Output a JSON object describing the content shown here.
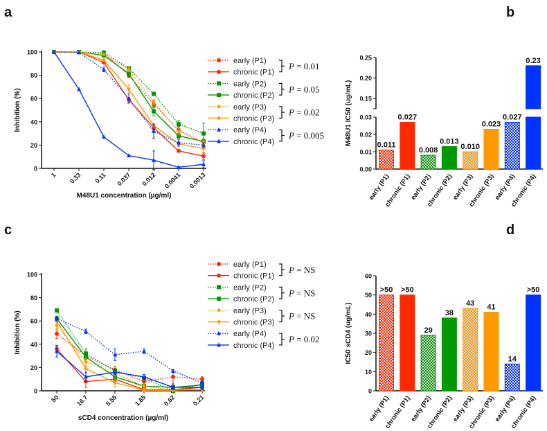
{
  "colors": {
    "P1": "#ff2a00",
    "P2": "#009900",
    "P3": "#ff9900",
    "P4": "#0033ff"
  },
  "chart_data": [
    {
      "panel": "a",
      "type": "line",
      "xlabel": "M48U1 concentration (µg/ml)",
      "ylabel": "Inhibition (%)",
      "ylim": [
        0,
        100
      ],
      "yticks": [
        "0",
        "20",
        "40",
        "60",
        "80",
        "100"
      ],
      "categories": [
        "1",
        "0.33",
        "0.11",
        "0.037",
        "0.012",
        "0.0041",
        "0.0013"
      ],
      "series": [
        {
          "name": "early (P1)",
          "group": "P1",
          "style": "dotted",
          "marker": "circle",
          "values": [
            100,
            100,
            99,
            80,
            55,
            33,
            22
          ],
          "err": [
            0,
            0,
            1,
            2,
            3,
            3,
            2
          ]
        },
        {
          "name": "chronic (P1)",
          "group": "P1",
          "style": "solid",
          "marker": "circle",
          "values": [
            100,
            100,
            91,
            59,
            35,
            15,
            10.5
          ],
          "err": [
            0,
            0,
            1,
            2,
            2,
            1,
            3
          ]
        },
        {
          "name": "early (P2)",
          "group": "P2",
          "style": "dotted",
          "marker": "square",
          "values": [
            100,
            100,
            99.5,
            86,
            64,
            38,
            30
          ],
          "err": [
            0,
            0,
            1,
            1,
            1,
            3,
            9
          ]
        },
        {
          "name": "chronic (P2)",
          "group": "P2",
          "style": "solid",
          "marker": "square",
          "values": [
            100,
            100,
            97,
            81.5,
            49,
            28,
            23
          ],
          "err": [
            0,
            0,
            1,
            2,
            4,
            2,
            2
          ]
        },
        {
          "name": "early (P3)",
          "group": "P3",
          "style": "dotted",
          "marker": "diamond",
          "values": [
            100,
            100,
            98,
            85,
            57,
            32,
            22
          ],
          "err": [
            0,
            0,
            1,
            2,
            2,
            3,
            2
          ]
        },
        {
          "name": "chronic (P3)",
          "group": "P3",
          "style": "solid",
          "marker": "diamond",
          "values": [
            100,
            100,
            93,
            68,
            37,
            21,
            17
          ],
          "err": [
            0,
            0,
            1,
            4,
            2,
            2,
            4
          ]
        },
        {
          "name": "early (P4)",
          "group": "P4",
          "style": "dotted",
          "marker": "triangle",
          "values": [
            100,
            99.5,
            85,
            60,
            32,
            22,
            20
          ],
          "err": [
            0,
            0,
            2,
            4,
            6,
            3,
            2
          ]
        },
        {
          "name": "chronic (P4)",
          "group": "P4",
          "style": "solid",
          "marker": "triangle",
          "values": [
            100,
            68,
            27,
            11,
            7,
            1,
            3.5
          ],
          "err": [
            0,
            0,
            0,
            0,
            8,
            0,
            3
          ]
        }
      ],
      "p_values": [
        "P = 0.01",
        "P = 0.05",
        "P = 0.02",
        "P = 0.005"
      ]
    },
    {
      "panel": "b",
      "type": "bar",
      "ylabel": "M48U1 IC50 (ug/mL)",
      "axis_break": [
        0.03,
        0.125
      ],
      "ylim": [
        0,
        0.25
      ],
      "yticks_lower": [
        "0.00",
        "0.01",
        "0.02",
        "0.03"
      ],
      "yticks_upper": [
        "0.15",
        "0.20",
        "0.25"
      ],
      "categories": [
        "early (P1)",
        "chronic (P1)",
        "early (P2)",
        "chronic (P2)",
        "early (P3)",
        "chronic (P3)",
        "early (P4)",
        "chronic (P4)"
      ],
      "values": [
        0.011,
        0.027,
        0.008,
        0.013,
        0.01,
        0.023,
        0.027,
        0.23
      ],
      "labels": [
        "0.011",
        "0.027",
        "0.008",
        "0.013",
        "0.010",
        "0.023",
        "0.027",
        "0.23"
      ],
      "fill": [
        "checker",
        "solid",
        "checker",
        "solid",
        "checker",
        "solid",
        "checker",
        "solid"
      ]
    },
    {
      "panel": "c",
      "type": "line",
      "xlabel": "sCD4 concentration (µg/ml)",
      "ylabel": "Inhibition (%)",
      "ylim": [
        0,
        100
      ],
      "yticks": [
        "0",
        "20",
        "40",
        "60",
        "80",
        "100"
      ],
      "categories": [
        "50",
        "16.7",
        "5.55",
        "1.85",
        "0.62",
        "0.21"
      ],
      "series": [
        {
          "name": "early (P1)",
          "group": "P1",
          "style": "dotted",
          "marker": "circle",
          "values": [
            49,
            30,
            18,
            8,
            12,
            10
          ],
          "err": [
            4,
            6,
            3,
            4,
            6,
            2
          ]
        },
        {
          "name": "chronic (P1)",
          "group": "P1",
          "style": "solid",
          "marker": "circle",
          "values": [
            36,
            8,
            10,
            1,
            1,
            3
          ],
          "err": [
            2,
            5,
            2,
            1,
            1,
            1
          ]
        },
        {
          "name": "early (P2)",
          "group": "P2",
          "style": "dotted",
          "marker": "square",
          "values": [
            69,
            32,
            17,
            11,
            0,
            6
          ],
          "err": [
            1,
            4,
            2,
            3,
            1,
            2
          ]
        },
        {
          "name": "chronic (P2)",
          "group": "P2",
          "style": "solid",
          "marker": "square",
          "values": [
            62,
            29,
            12,
            4,
            3,
            5
          ],
          "err": [
            2,
            2,
            2,
            2,
            2,
            2
          ]
        },
        {
          "name": "early (P3)",
          "group": "P3",
          "style": "dotted",
          "marker": "diamond",
          "values": [
            56,
            25,
            15,
            4,
            0.5,
            1
          ],
          "err": [
            4,
            3,
            2,
            2,
            1,
            1
          ]
        },
        {
          "name": "chronic (P3)",
          "group": "P3",
          "style": "solid",
          "marker": "diamond",
          "values": [
            60,
            19,
            7,
            0.5,
            0.5,
            1.5
          ],
          "err": [
            2,
            2,
            4,
            1,
            1,
            1
          ]
        },
        {
          "name": "early (P4)",
          "group": "P4",
          "style": "dotted",
          "marker": "triangle",
          "values": [
            62,
            51,
            31,
            34,
            17,
            7
          ],
          "err": [
            2,
            2,
            5,
            2,
            1,
            1
          ]
        },
        {
          "name": "chronic (P4)",
          "group": "P4",
          "style": "solid",
          "marker": "triangle",
          "values": [
            34,
            12,
            16,
            12,
            3,
            3
          ],
          "err": [
            5,
            4,
            2,
            2,
            2,
            2
          ]
        }
      ],
      "p_values": [
        "P = NS",
        "P = NS",
        "P = NS",
        "P = 0.02"
      ]
    },
    {
      "panel": "d",
      "type": "bar",
      "ylabel": "IC50 sCD4 (ug/mL)",
      "ylim": [
        0,
        60
      ],
      "yticks": [
        "0",
        "10",
        "20",
        "30",
        "40",
        "50",
        "60"
      ],
      "categories": [
        "early (P1)",
        "chronic (P1)",
        "early (P2)",
        "chronic (P2)",
        "early (P3)",
        "chronic (P3)",
        "early (P4)",
        "chronic (P4)"
      ],
      "values": [
        50,
        50,
        29,
        38,
        43,
        41,
        14,
        50
      ],
      "labels": [
        ">50",
        ">50",
        "29",
        "38",
        "43",
        "41",
        "14",
        ">50"
      ],
      "fill": [
        "checker",
        "solid",
        "checker",
        "solid",
        "checker",
        "solid",
        "checker",
        "solid"
      ]
    }
  ],
  "panel_labels": [
    "a",
    "b",
    "c",
    "d"
  ]
}
